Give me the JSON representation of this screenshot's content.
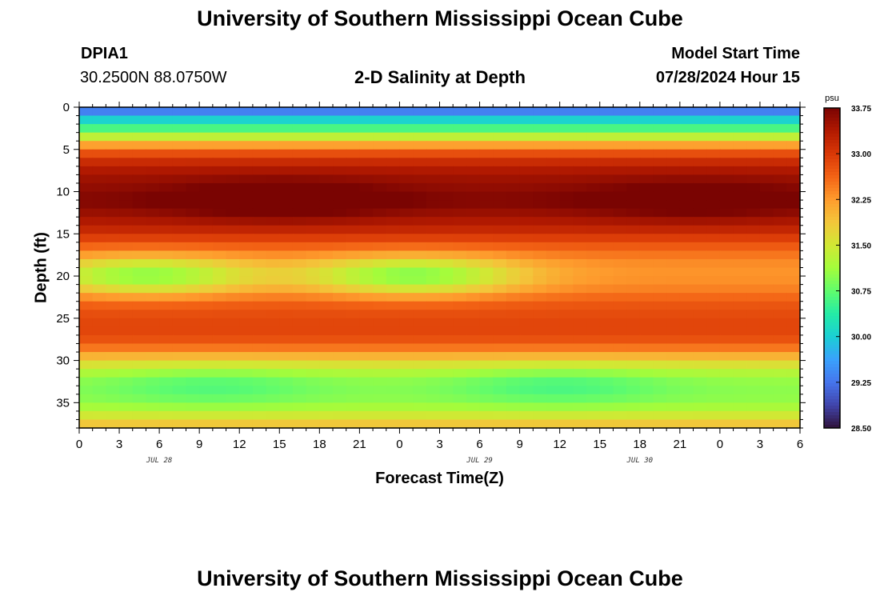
{
  "header": {
    "main_title": "University of Southern Mississippi Ocean Cube",
    "station_id": "DPIA1",
    "station_coords": "30.2500N  88.0750W",
    "chart_title": "2-D Salinity at Depth",
    "model_start_label": "Model Start Time",
    "model_start_value": "07/28/2024 Hour 15",
    "footer_title": "University of Southern Mississippi Ocean Cube"
  },
  "chart_data": {
    "type": "heatmap",
    "title": "2-D Salinity at Depth",
    "xlabel": "Forecast Time(Z)",
    "ylabel": "Depth (ft)",
    "x_tick_labels": [
      "0",
      "3",
      "6",
      "9",
      "12",
      "15",
      "18",
      "21",
      "0",
      "3",
      "6",
      "9",
      "12",
      "15",
      "18",
      "21",
      "0",
      "3",
      "6"
    ],
    "x_day_labels": [
      {
        "label": "JUL 28",
        "hour_index": 6
      },
      {
        "label": "JUL 29",
        "hour_index": 30
      },
      {
        "label": "JUL 30",
        "hour_index": 42
      }
    ],
    "x_hours_range": [
      0,
      54
    ],
    "y_ticks": [
      0,
      5,
      10,
      15,
      20,
      25,
      30,
      35
    ],
    "ylim": [
      0,
      38
    ],
    "y_inverted": true,
    "colorbar": {
      "unit": "psu",
      "range": [
        28.5,
        33.75
      ],
      "tick_labels": [
        "33.75",
        "33.00",
        "32.25",
        "31.50",
        "30.75",
        "30.00",
        "29.25",
        "28.50"
      ]
    },
    "depth_profile": [
      {
        "depth": 0,
        "salinity": 28.9
      },
      {
        "depth": 1,
        "salinity": 29.8
      },
      {
        "depth": 2,
        "salinity": 30.3
      },
      {
        "depth": 3,
        "salinity": 30.9
      },
      {
        "depth": 4,
        "salinity": 31.8
      },
      {
        "depth": 5,
        "salinity": 32.6
      },
      {
        "depth": 6,
        "salinity": 33.0
      },
      {
        "depth": 7,
        "salinity": 33.3
      },
      {
        "depth": 8,
        "salinity": 33.45
      },
      {
        "depth": 9,
        "salinity": 33.55
      },
      {
        "depth": 10,
        "salinity": 33.6
      },
      {
        "depth": 11,
        "salinity": 33.7
      },
      {
        "depth": 12,
        "salinity": 33.6
      },
      {
        "depth": 13,
        "salinity": 33.45
      },
      {
        "depth": 14,
        "salinity": 33.3
      },
      {
        "depth": 15,
        "salinity": 33.1
      },
      {
        "depth": 16,
        "salinity": 32.8
      },
      {
        "depth": 17,
        "salinity": 32.6
      },
      {
        "depth": 18,
        "salinity": 32.4
      },
      {
        "depth": 19,
        "salinity": 32.3
      },
      {
        "depth": 20,
        "salinity": 32.3
      },
      {
        "depth": 21,
        "salinity": 32.35
      },
      {
        "depth": 22,
        "salinity": 32.5
      },
      {
        "depth": 23,
        "salinity": 32.7
      },
      {
        "depth": 24,
        "salinity": 32.8
      },
      {
        "depth": 25,
        "salinity": 32.85
      },
      {
        "depth": 26,
        "salinity": 32.9
      },
      {
        "depth": 27,
        "salinity": 32.85
      },
      {
        "depth": 28,
        "salinity": 32.7
      },
      {
        "depth": 29,
        "salinity": 32.3
      },
      {
        "depth": 30,
        "salinity": 31.8
      },
      {
        "depth": 31,
        "salinity": 31.4
      },
      {
        "depth": 32,
        "salinity": 31.1
      },
      {
        "depth": 33,
        "salinity": 31.0
      },
      {
        "depth": 34,
        "salinity": 31.0
      },
      {
        "depth": 35,
        "salinity": 31.05
      },
      {
        "depth": 36,
        "salinity": 31.3
      },
      {
        "depth": 37,
        "salinity": 31.7
      },
      {
        "depth": 38,
        "salinity": 32.0
      }
    ],
    "anomalies": [
      {
        "kind": "fresh",
        "hour": 5,
        "depth": 20,
        "delta": 1.3
      },
      {
        "kind": "fresh",
        "hour": 25,
        "depth": 20,
        "delta": 1.35
      },
      {
        "kind": "salty",
        "hour": 15,
        "depth": 11,
        "delta": 0.45
      },
      {
        "kind": "salty",
        "hour": 46,
        "depth": 11,
        "delta": 0.35
      },
      {
        "kind": "fresh",
        "hour": 10,
        "depth": 33,
        "delta": 0.35
      },
      {
        "kind": "fresh",
        "hour": 36,
        "depth": 33,
        "delta": 0.4
      }
    ],
    "colormap": [
      "#30123b",
      "#4145ab",
      "#4675ed",
      "#39a2fc",
      "#1bcfd4",
      "#24eca6",
      "#61fc6c",
      "#a4fc3b",
      "#d1e834",
      "#f3c63a",
      "#fe9b2d",
      "#f36315",
      "#d93806",
      "#b11901",
      "#7a0402"
    ]
  }
}
